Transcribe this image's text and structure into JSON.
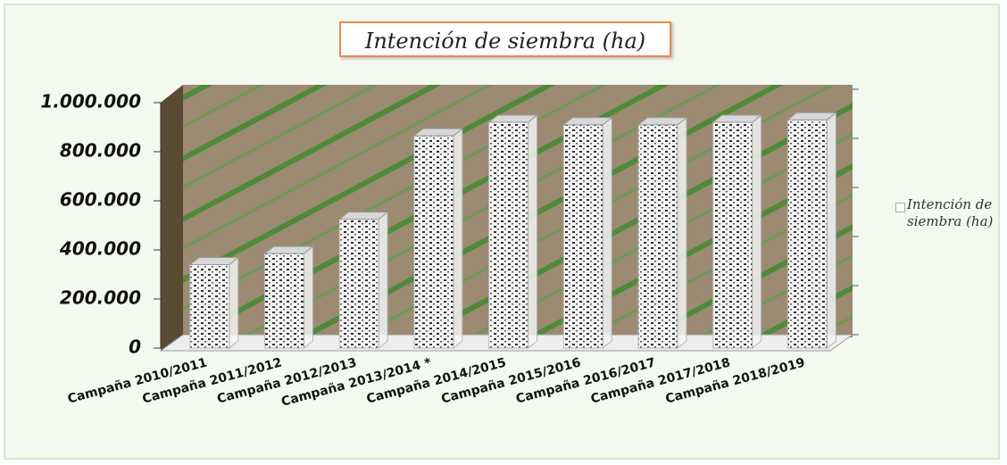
{
  "chart_data": {
    "type": "bar",
    "title": "Intención de siembra (ha)",
    "categories": [
      "Campaña 2010/2011",
      "Campaña 2011/2012",
      "Campaña 2012/2013",
      "Campaña 2013/2014 *",
      "Campaña 2014/2015",
      "Campaña 2015/2016",
      "Campaña 2016/2017",
      "Campaña 2017/2018",
      "Campaña 2018/2019"
    ],
    "series": [
      {
        "name": "Intención de siembra (ha)",
        "color": "#f4f4f4",
        "values": [
          340000,
          385000,
          525000,
          865000,
          920000,
          910000,
          910000,
          920000,
          930000
        ]
      }
    ],
    "ylim": [
      0,
      1000000
    ],
    "yticks": [
      0,
      {
        "value": 200000,
        "label": "200.000"
      },
      {
        "value": 400000,
        "label": "400.000"
      },
      {
        "value": 600000,
        "label": "600.000"
      },
      {
        "value": 800000,
        "label": "800.000"
      },
      {
        "value": 1000000,
        "label": "1.000.000"
      }
    ],
    "legend_position": "right"
  }
}
